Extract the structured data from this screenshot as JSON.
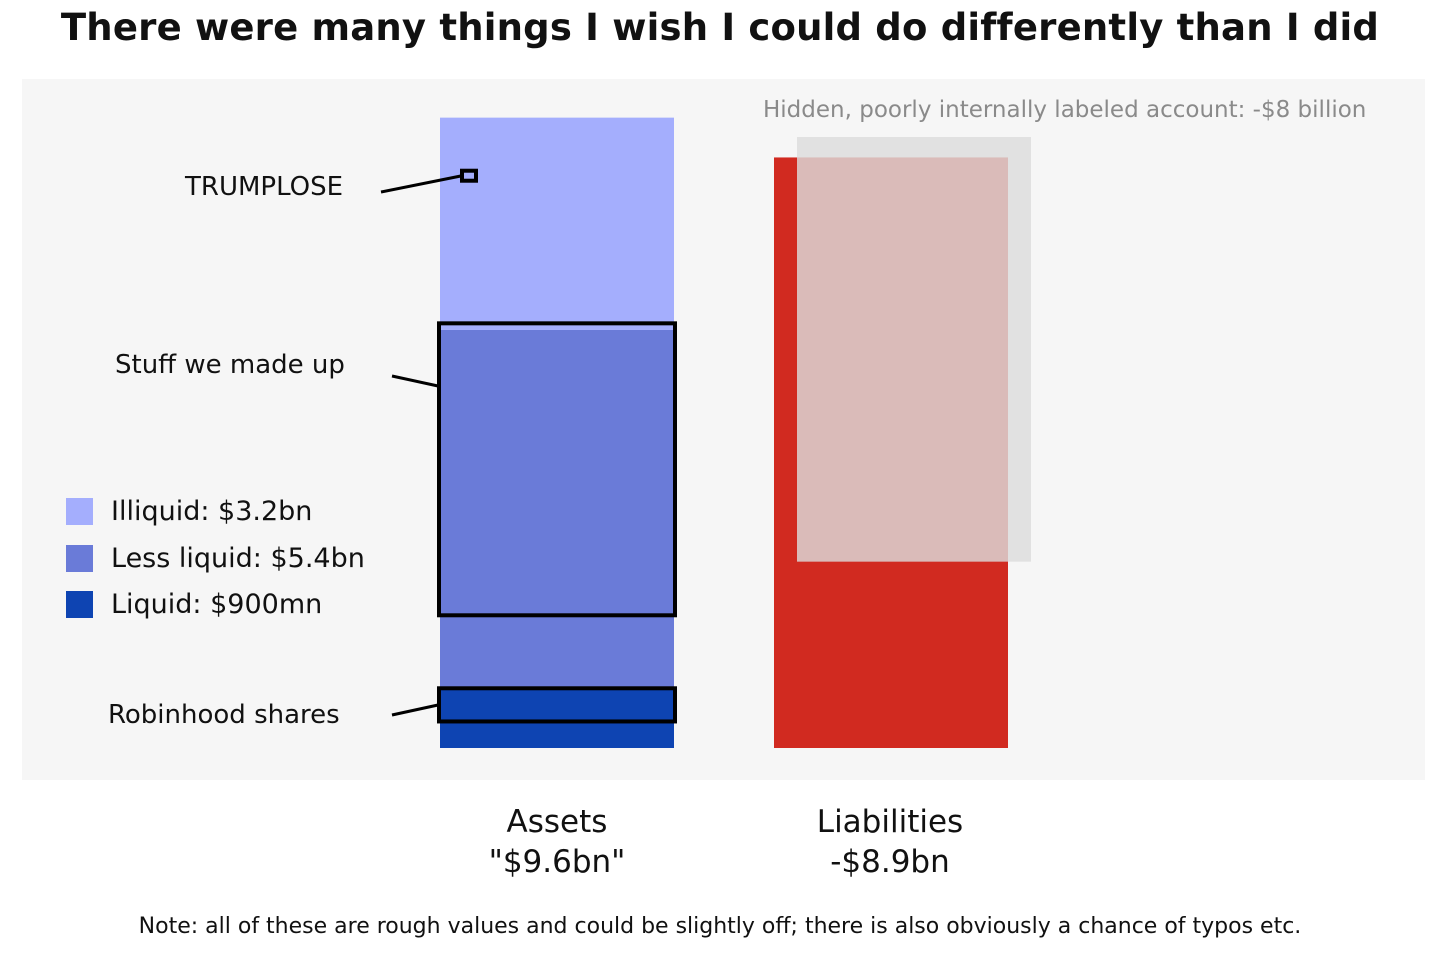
{
  "chart_data": {
    "type": "bar",
    "title": "There were many things I wish I could do differently than I did",
    "categories": [
      "Assets",
      "Liabilities"
    ],
    "category_values": [
      "\"$9.6bn\"",
      "-$8.9bn"
    ],
    "series": [
      {
        "name": "Illiquid: $3.2bn",
        "category": "Assets",
        "value": 3.2,
        "color": "#a4aefd"
      },
      {
        "name": "Less liquid: $5.4bn",
        "category": "Assets",
        "value": 5.4,
        "color": "#6a7bd8"
      },
      {
        "name": "Liquid: $900mn",
        "category": "Assets",
        "value": 0.9,
        "color": "#0e44b2"
      }
    ],
    "liabilities": {
      "value": 8.9,
      "color": "#d12a20"
    },
    "hidden_account": {
      "label": "Hidden, poorly internally labeled account: -$8 billion",
      "value": 8.0,
      "color": "#dcdcdc"
    },
    "annotations": [
      {
        "label": "TRUMPLOSE",
        "lower": 8.6,
        "upper": 8.7
      },
      {
        "label": "Stuff we made up",
        "lower": 2.0,
        "upper": 6.4
      },
      {
        "label": "Robinhood shares",
        "lower": 0.4,
        "upper": 0.9
      }
    ],
    "ylim": [
      0,
      9.6
    ],
    "legend_position": "left",
    "grid": false,
    "xlabel": "",
    "ylabel": ""
  },
  "note": "Note: all of these are rough values and could be slightly off; there is also obviously a chance of typos etc."
}
